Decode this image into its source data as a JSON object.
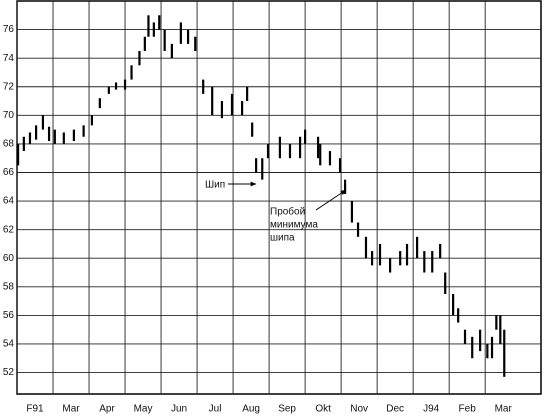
{
  "chart_data": {
    "type": "ohlc",
    "ylim": [
      50.5,
      78
    ],
    "yticks": [
      52,
      54,
      56,
      58,
      60,
      62,
      64,
      66,
      68,
      70,
      72,
      74,
      76
    ],
    "xlim": [
      0,
      14.55
    ],
    "xticks": [
      {
        "value": 0,
        "label": "F91"
      },
      {
        "value": 1,
        "label": "Mar"
      },
      {
        "value": 2,
        "label": "Apr"
      },
      {
        "value": 3,
        "label": "May"
      },
      {
        "value": 4,
        "label": "Jun"
      },
      {
        "value": 5,
        "label": "Jul"
      },
      {
        "value": 6,
        "label": "Aug"
      },
      {
        "value": 7,
        "label": "Sep"
      },
      {
        "value": 8,
        "label": "Okt"
      },
      {
        "value": 9,
        "label": "Nov"
      },
      {
        "value": 10,
        "label": "Dec"
      },
      {
        "value": 11,
        "label": "J94"
      },
      {
        "value": 12,
        "label": "Feb"
      },
      {
        "value": 13,
        "label": "Mar"
      }
    ],
    "grid": true,
    "color": "#000000",
    "x": [
      0.03,
      0.19,
      0.36,
      0.53,
      0.72,
      0.89,
      1.05,
      1.3,
      1.58,
      1.85,
      2.08,
      2.3,
      2.55,
      2.75,
      3.0,
      3.18,
      3.4,
      3.55,
      3.65,
      3.8,
      3.95,
      4.1,
      4.3,
      4.55,
      4.75,
      4.95,
      5.17,
      5.42,
      5.69,
      5.97,
      6.25,
      6.39,
      6.53,
      6.64,
      6.81,
      6.97,
      7.3,
      7.58,
      7.86,
      8.0,
      8.36,
      8.42,
      8.69,
      8.97,
      9.11,
      9.3,
      9.47,
      9.69,
      9.86,
      10.08,
      10.36,
      10.64,
      10.83,
      11.11,
      11.31,
      11.53,
      11.75,
      11.89,
      12.11,
      12.25,
      12.44,
      12.64,
      12.86,
      13.06,
      13.19,
      13.31,
      13.42,
      13.53
    ],
    "high": [
      68,
      68.5,
      68.8,
      69.3,
      70,
      69.2,
      69,
      68.8,
      69,
      69.3,
      70,
      71.2,
      72,
      72.3,
      72.5,
      73.5,
      74.5,
      75.5,
      77,
      76.5,
      77,
      76,
      75,
      76.5,
      76,
      75.5,
      72.5,
      72,
      71,
      71.5,
      71,
      72,
      69.5,
      67,
      67,
      68,
      68.5,
      68,
      68.5,
      69,
      68.5,
      68,
      67.5,
      67,
      65.5,
      64,
      62.5,
      61.5,
      60.5,
      61,
      60,
      60.5,
      61,
      61.5,
      60.5,
      60.5,
      61,
      59,
      57.5,
      56.5,
      55,
      54.5,
      55,
      54,
      54.5,
      56,
      56,
      55
    ],
    "low": [
      66.5,
      67.5,
      68,
      68.3,
      69,
      68.2,
      68,
      68,
      68.2,
      68.5,
      69.3,
      70.5,
      71.5,
      71.8,
      71.8,
      72.5,
      73.5,
      74.5,
      75.5,
      75.5,
      76,
      74.5,
      74,
      75,
      75,
      74.5,
      71.5,
      70,
      69.8,
      70,
      70,
      71,
      68.5,
      66,
      65.5,
      67,
      67,
      67,
      67,
      68,
      67,
      66.5,
      66.5,
      66,
      64.5,
      62.5,
      61.5,
      60,
      59.5,
      59.5,
      59,
      59.5,
      59.5,
      60,
      59,
      59,
      60,
      57.5,
      56,
      55.5,
      54,
      53,
      53.5,
      53,
      53,
      55,
      54,
      51.7
    ],
    "annotations": [
      {
        "text": "Шип"
      },
      {
        "text": [
          "Пробой",
          "минимума",
          "шипа"
        ]
      }
    ]
  }
}
